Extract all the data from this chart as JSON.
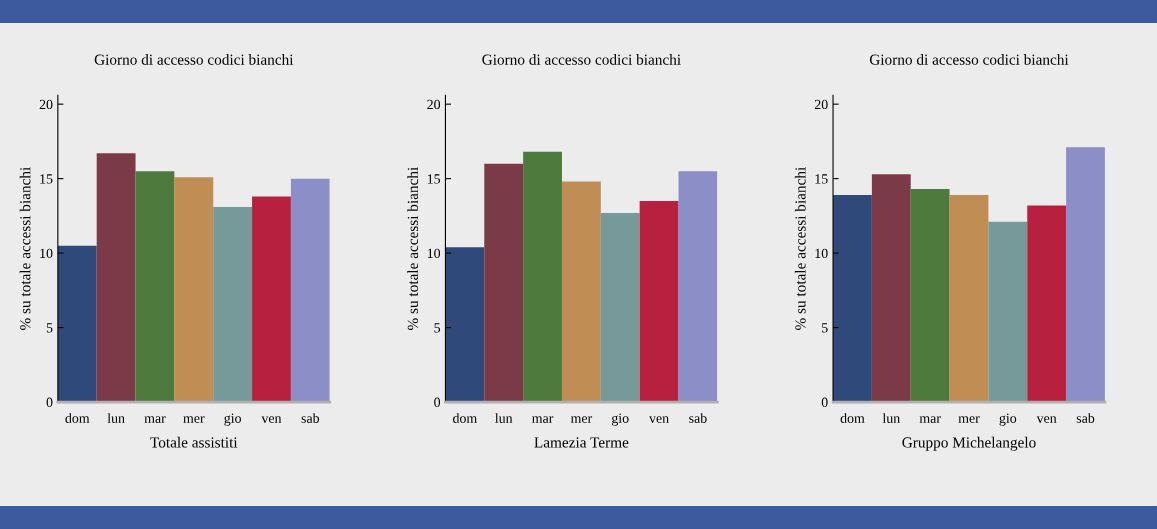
{
  "chart_data": [
    {
      "type": "bar",
      "title": "Giorno di accesso codici bianchi",
      "xlabel": "Totale assistiti",
      "ylabel": "% su totale accessi bianchi",
      "categories": [
        "dom",
        "lun",
        "mar",
        "mer",
        "gio",
        "ven",
        "sab"
      ],
      "colors": [
        "#2f4a7a",
        "#7b3a48",
        "#4f7a3e",
        "#c08d55",
        "#76999a",
        "#b8203f",
        "#8b8ec7"
      ],
      "values": [
        10.5,
        16.7,
        15.5,
        15.1,
        13.1,
        13.8,
        15.0
      ],
      "ylim": [
        0,
        20.6
      ],
      "yticks": [
        0,
        5,
        10,
        15,
        20
      ],
      "grid": false
    },
    {
      "type": "bar",
      "title": "Giorno di accesso codici bianchi",
      "xlabel": "Lamezia Terme",
      "ylabel": "% su totale accessi bianchi",
      "categories": [
        "dom",
        "lun",
        "mar",
        "mer",
        "gio",
        "ven",
        "sab"
      ],
      "colors": [
        "#2f4a7a",
        "#7b3a48",
        "#4f7a3e",
        "#c08d55",
        "#76999a",
        "#b8203f",
        "#8b8ec7"
      ],
      "values": [
        10.4,
        16.0,
        16.8,
        14.8,
        12.7,
        13.5,
        15.5
      ],
      "ylim": [
        0,
        20.6
      ],
      "yticks": [
        0,
        5,
        10,
        15,
        20
      ],
      "grid": false
    },
    {
      "type": "bar",
      "title": "Giorno di accesso codici bianchi",
      "xlabel": "Gruppo Michelangelo",
      "ylabel": "% su totale accessi bianchi",
      "categories": [
        "dom",
        "lun",
        "mar",
        "mer",
        "gio",
        "ven",
        "sab"
      ],
      "colors": [
        "#2f4a7a",
        "#7b3a48",
        "#4f7a3e",
        "#c08d55",
        "#76999a",
        "#b8203f",
        "#8b8ec7"
      ],
      "values": [
        13.9,
        15.3,
        14.3,
        13.9,
        12.1,
        13.2,
        17.1
      ],
      "ylim": [
        0,
        20.6
      ],
      "yticks": [
        0,
        5,
        10,
        15,
        20
      ],
      "grid": false
    }
  ]
}
